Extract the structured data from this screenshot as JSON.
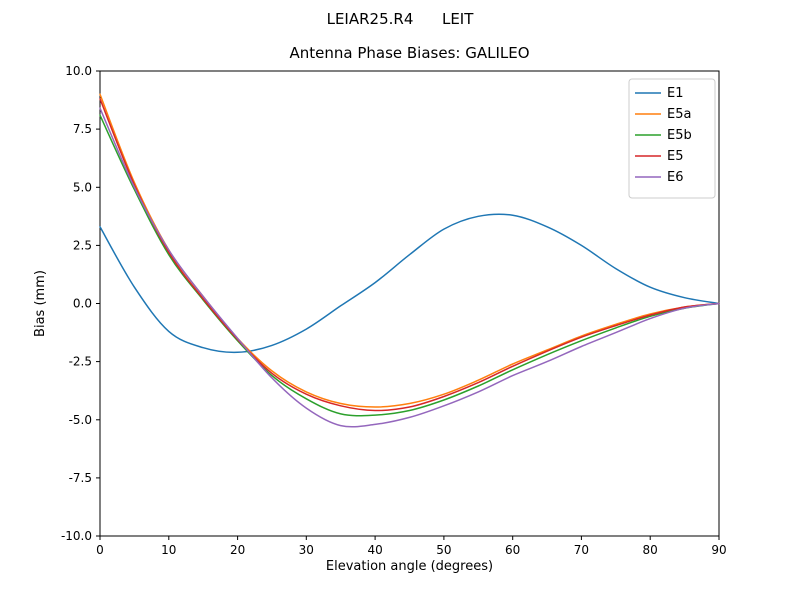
{
  "figure": {
    "suptitle": "LEIAR25.R4      LEIT",
    "title": "Antenna Phase Biases: GALILEO"
  },
  "chart_data": {
    "type": "line",
    "suptitle": "LEIAR25.R4      LEIT",
    "title": "Antenna Phase Biases: GALILEO",
    "xlabel": "Elevation angle (degrees)",
    "ylabel": "Bias (mm)",
    "xlim": [
      0,
      90
    ],
    "ylim": [
      -10,
      10
    ],
    "grid": false,
    "legend_position": "upper right",
    "xticks": [
      0,
      10,
      20,
      30,
      40,
      50,
      60,
      70,
      80,
      90
    ],
    "xtick_labels": [
      "0",
      "10",
      "20",
      "30",
      "40",
      "50",
      "60",
      "70",
      "80",
      "90"
    ],
    "yticks": [
      -10,
      -7.5,
      -5,
      -2.5,
      0,
      2.5,
      5,
      7.5,
      10
    ],
    "ytick_labels": [
      "-10.0",
      "-7.5",
      "-5.0",
      "-2.5",
      "0.0",
      "2.5",
      "5.0",
      "7.5",
      "10.0"
    ],
    "x": [
      0,
      5,
      10,
      15,
      20,
      25,
      30,
      35,
      40,
      45,
      50,
      55,
      60,
      65,
      70,
      75,
      80,
      85,
      90
    ],
    "series": [
      {
        "name": "E1",
        "color": "#1f77b4",
        "values": [
          3.3,
          0.7,
          -1.2,
          -1.9,
          -2.1,
          -1.8,
          -1.1,
          -0.1,
          0.9,
          2.1,
          3.2,
          3.75,
          3.8,
          3.3,
          2.5,
          1.5,
          0.7,
          0.25,
          0.0
        ]
      },
      {
        "name": "E5a",
        "color": "#ff7f0e",
        "values": [
          9.0,
          5.2,
          2.3,
          0.3,
          -1.5,
          -2.9,
          -3.8,
          -4.3,
          -4.45,
          -4.3,
          -3.9,
          -3.3,
          -2.6,
          -2.0,
          -1.4,
          -0.9,
          -0.45,
          -0.15,
          0.0
        ]
      },
      {
        "name": "E5b",
        "color": "#2ca02c",
        "values": [
          8.1,
          4.9,
          2.1,
          0.15,
          -1.6,
          -3.1,
          -4.1,
          -4.75,
          -4.8,
          -4.6,
          -4.15,
          -3.55,
          -2.85,
          -2.2,
          -1.6,
          -1.05,
          -0.55,
          -0.2,
          0.0
        ]
      },
      {
        "name": "E5",
        "color": "#d62728",
        "values": [
          8.8,
          5.1,
          2.2,
          0.2,
          -1.55,
          -3.0,
          -3.9,
          -4.4,
          -4.6,
          -4.45,
          -4.0,
          -3.4,
          -2.7,
          -2.05,
          -1.45,
          -0.95,
          -0.5,
          -0.15,
          0.0
        ]
      },
      {
        "name": "E6",
        "color": "#9467bd",
        "values": [
          8.4,
          5.0,
          2.3,
          0.3,
          -1.5,
          -3.2,
          -4.5,
          -5.25,
          -5.2,
          -4.9,
          -4.4,
          -3.8,
          -3.1,
          -2.5,
          -1.85,
          -1.25,
          -0.65,
          -0.2,
          0.0
        ]
      }
    ]
  }
}
